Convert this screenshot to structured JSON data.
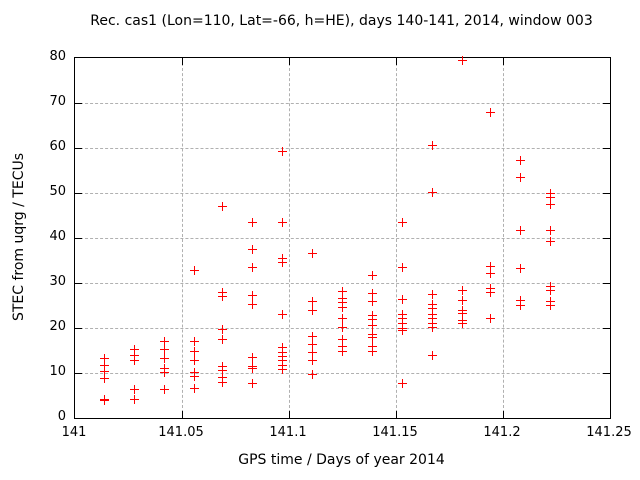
{
  "chart_data": {
    "type": "scatter",
    "title": "Rec. cas1 (Lon=110, Lat=-66, h=HE), days 140-141, 2014, window 003",
    "xlabel": "GPS time / Days of year 2014",
    "ylabel": "STEC from uqrg / TECUs",
    "xlim": [
      141.0,
      141.25
    ],
    "ylim": [
      0,
      80
    ],
    "xticks": [
      141.0,
      141.05,
      141.1,
      141.15,
      141.2,
      141.25
    ],
    "xtick_labels": [
      "141",
      "141.05",
      "141.1",
      "141.15",
      "141.2",
      "141.25"
    ],
    "yticks": [
      0,
      10,
      20,
      30,
      40,
      50,
      60,
      70,
      80
    ],
    "ytick_labels": [
      "0",
      "10",
      "20",
      "30",
      "40",
      "50",
      "60",
      "70",
      "80"
    ],
    "grid": true,
    "legend_position": "none",
    "marker": "plus",
    "marker_color": "#ff0000",
    "series": [
      {
        "name": "STEC",
        "points": [
          [
            141.014,
            13.2
          ],
          [
            141.014,
            11.7
          ],
          [
            141.014,
            10.3
          ],
          [
            141.014,
            8.8
          ],
          [
            141.014,
            4.2
          ],
          [
            141.014,
            3.9
          ],
          [
            141.028,
            15.2
          ],
          [
            141.028,
            13.9
          ],
          [
            141.028,
            12.8
          ],
          [
            141.028,
            6.3
          ],
          [
            141.028,
            4.1
          ],
          [
            141.042,
            17.0
          ],
          [
            141.042,
            15.2
          ],
          [
            141.042,
            13.3
          ],
          [
            141.042,
            11.0
          ],
          [
            141.042,
            10.2
          ],
          [
            141.042,
            6.3
          ],
          [
            141.056,
            32.8
          ],
          [
            141.056,
            17.0
          ],
          [
            141.056,
            14.7
          ],
          [
            141.056,
            12.8
          ],
          [
            141.056,
            10.2
          ],
          [
            141.056,
            9.3
          ],
          [
            141.056,
            6.5
          ],
          [
            141.069,
            47.0
          ],
          [
            141.069,
            28.0
          ],
          [
            141.069,
            27.1
          ],
          [
            141.069,
            19.6
          ],
          [
            141.069,
            17.4
          ],
          [
            141.069,
            11.4
          ],
          [
            141.069,
            10.6
          ],
          [
            141.069,
            9.0
          ],
          [
            141.069,
            8.0
          ],
          [
            141.083,
            43.4
          ],
          [
            141.083,
            37.4
          ],
          [
            141.083,
            33.4
          ],
          [
            141.083,
            27.2
          ],
          [
            141.083,
            25.2
          ],
          [
            141.083,
            13.5
          ],
          [
            141.083,
            11.5
          ],
          [
            141.083,
            10.9
          ],
          [
            141.083,
            7.7
          ],
          [
            141.097,
            59.2
          ],
          [
            141.097,
            43.4
          ],
          [
            141.097,
            35.4
          ],
          [
            141.097,
            34.6
          ],
          [
            141.097,
            23.0
          ],
          [
            141.097,
            15.7
          ],
          [
            141.097,
            14.6
          ],
          [
            141.097,
            13.6
          ],
          [
            141.097,
            12.7
          ],
          [
            141.097,
            11.7
          ],
          [
            141.097,
            10.8
          ],
          [
            141.111,
            36.6
          ],
          [
            141.111,
            25.9
          ],
          [
            141.111,
            23.9
          ],
          [
            141.111,
            18.2
          ],
          [
            141.111,
            16.3
          ],
          [
            141.111,
            14.5
          ],
          [
            141.111,
            12.7
          ],
          [
            141.111,
            9.7
          ],
          [
            141.125,
            28.2
          ],
          [
            141.125,
            26.5
          ],
          [
            141.125,
            25.6
          ],
          [
            141.125,
            24.5
          ],
          [
            141.125,
            22.2
          ],
          [
            141.125,
            20.2
          ],
          [
            141.125,
            17.5
          ],
          [
            141.125,
            16.0
          ],
          [
            141.125,
            14.7
          ],
          [
            141.139,
            31.7
          ],
          [
            141.139,
            27.7
          ],
          [
            141.139,
            25.9
          ],
          [
            141.139,
            22.7
          ],
          [
            141.139,
            22.0
          ],
          [
            141.139,
            20.5
          ],
          [
            141.139,
            18.6
          ],
          [
            141.139,
            17.9
          ],
          [
            141.139,
            16.0
          ],
          [
            141.139,
            14.7
          ],
          [
            141.153,
            43.4
          ],
          [
            141.153,
            33.5
          ],
          [
            141.153,
            26.3
          ],
          [
            141.153,
            22.9
          ],
          [
            141.153,
            22.1
          ],
          [
            141.153,
            20.9
          ],
          [
            141.153,
            20.0
          ],
          [
            141.153,
            19.4
          ],
          [
            141.153,
            7.7
          ],
          [
            141.167,
            60.6
          ],
          [
            141.167,
            50.2
          ],
          [
            141.167,
            27.4
          ],
          [
            141.167,
            25.2
          ],
          [
            141.167,
            24.3
          ],
          [
            141.167,
            23.0
          ],
          [
            141.167,
            22.1
          ],
          [
            141.167,
            21.0
          ],
          [
            141.167,
            20.1
          ],
          [
            141.167,
            13.8
          ],
          [
            141.181,
            79.4
          ],
          [
            141.181,
            28.3
          ],
          [
            141.181,
            26.1
          ],
          [
            141.181,
            23.9
          ],
          [
            141.181,
            23.2
          ],
          [
            141.181,
            21.7
          ],
          [
            141.181,
            21.0
          ],
          [
            141.194,
            67.9
          ],
          [
            141.194,
            33.7
          ],
          [
            141.194,
            32.2
          ],
          [
            141.194,
            28.7
          ],
          [
            141.194,
            28.0
          ],
          [
            141.194,
            22.2
          ],
          [
            141.208,
            57.2
          ],
          [
            141.208,
            53.4
          ],
          [
            141.208,
            41.7
          ],
          [
            141.208,
            33.3
          ],
          [
            141.208,
            26.2
          ],
          [
            141.208,
            24.9
          ],
          [
            141.222,
            50.0
          ],
          [
            141.222,
            49.0
          ],
          [
            141.222,
            47.4
          ],
          [
            141.222,
            41.7
          ],
          [
            141.222,
            39.2
          ],
          [
            141.222,
            29.2
          ],
          [
            141.222,
            28.3
          ],
          [
            141.222,
            25.9
          ],
          [
            141.222,
            25.0
          ]
        ]
      }
    ],
    "colors": {
      "background": "#ffffff",
      "frame": "#000000",
      "grid": "#b0b0b0",
      "text": "#000000",
      "marker": "#ff0000"
    }
  }
}
